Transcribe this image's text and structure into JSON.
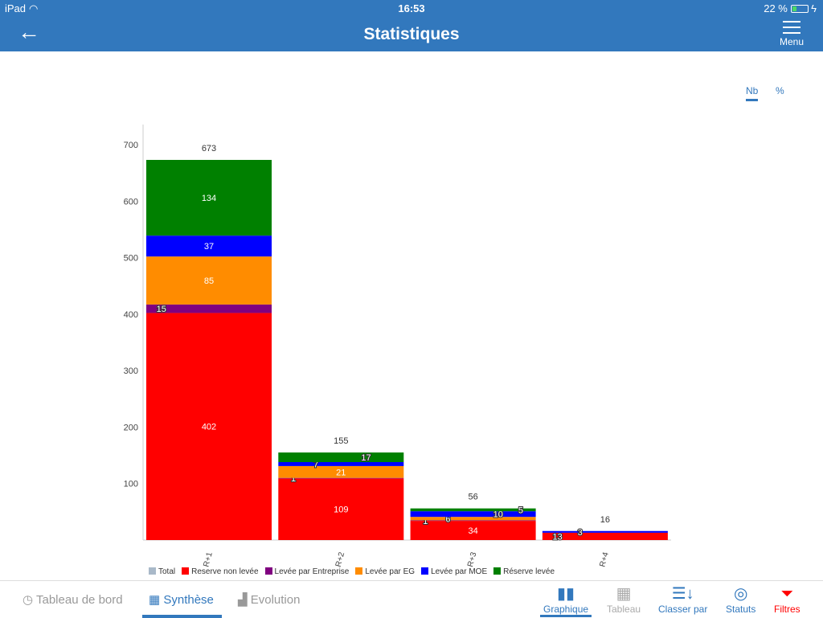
{
  "status_bar": {
    "device": "iPad",
    "time": "16:53",
    "battery": "22 %",
    "battery_level": 0.22
  },
  "header": {
    "title": "Statistiques",
    "menu_label": "Menu"
  },
  "mode_toggle": {
    "options": [
      "Nb",
      "%"
    ],
    "selected": "Nb"
  },
  "chart_data": {
    "type": "bar",
    "stacked": true,
    "categories": [
      "R+1",
      "R+2",
      "R+3",
      "R+4"
    ],
    "ylim": [
      0,
      700
    ],
    "yticks": [
      100,
      200,
      300,
      400,
      500,
      600,
      700
    ],
    "totals": [
      673,
      155,
      56,
      16
    ],
    "series": [
      {
        "name": "Reserve non levée",
        "color": "#ff0000",
        "values": [
          402,
          109,
          34,
          13
        ]
      },
      {
        "name": "Levée par Entreprise",
        "color": "#800080",
        "values": [
          15,
          1,
          1,
          0
        ]
      },
      {
        "name": "Levée par EG",
        "color": "#ff8c00",
        "values": [
          85,
          21,
          6,
          0
        ]
      },
      {
        "name": "Levée par MOE",
        "color": "#0000ff",
        "values": [
          37,
          7,
          10,
          3
        ]
      },
      {
        "name": "Réserve levée",
        "color": "#008000",
        "values": [
          134,
          17,
          5,
          0
        ]
      }
    ],
    "legend": [
      {
        "name": "Total",
        "color": "#a9b9c9"
      },
      {
        "name": "Reserve non levée",
        "color": "#ff0000"
      },
      {
        "name": "Levée par Entreprise",
        "color": "#800080"
      },
      {
        "name": "Levée par EG",
        "color": "#ff8c00"
      },
      {
        "name": "Levée par MOE",
        "color": "#0000ff"
      },
      {
        "name": "Réserve levée",
        "color": "#008000"
      }
    ],
    "legend_position": "bottom"
  },
  "tabs": [
    {
      "label": "Tableau de bord",
      "icon": "gauge-icon"
    },
    {
      "label": "Synthèse",
      "icon": "grid-icon",
      "selected": true
    },
    {
      "label": "Evolution",
      "icon": "chart-icon"
    }
  ],
  "tools": [
    {
      "label": "Graphique",
      "selected": true
    },
    {
      "label": "Tableau"
    },
    {
      "label": "Classer par"
    },
    {
      "label": "Statuts"
    },
    {
      "label": "Filtres"
    }
  ]
}
